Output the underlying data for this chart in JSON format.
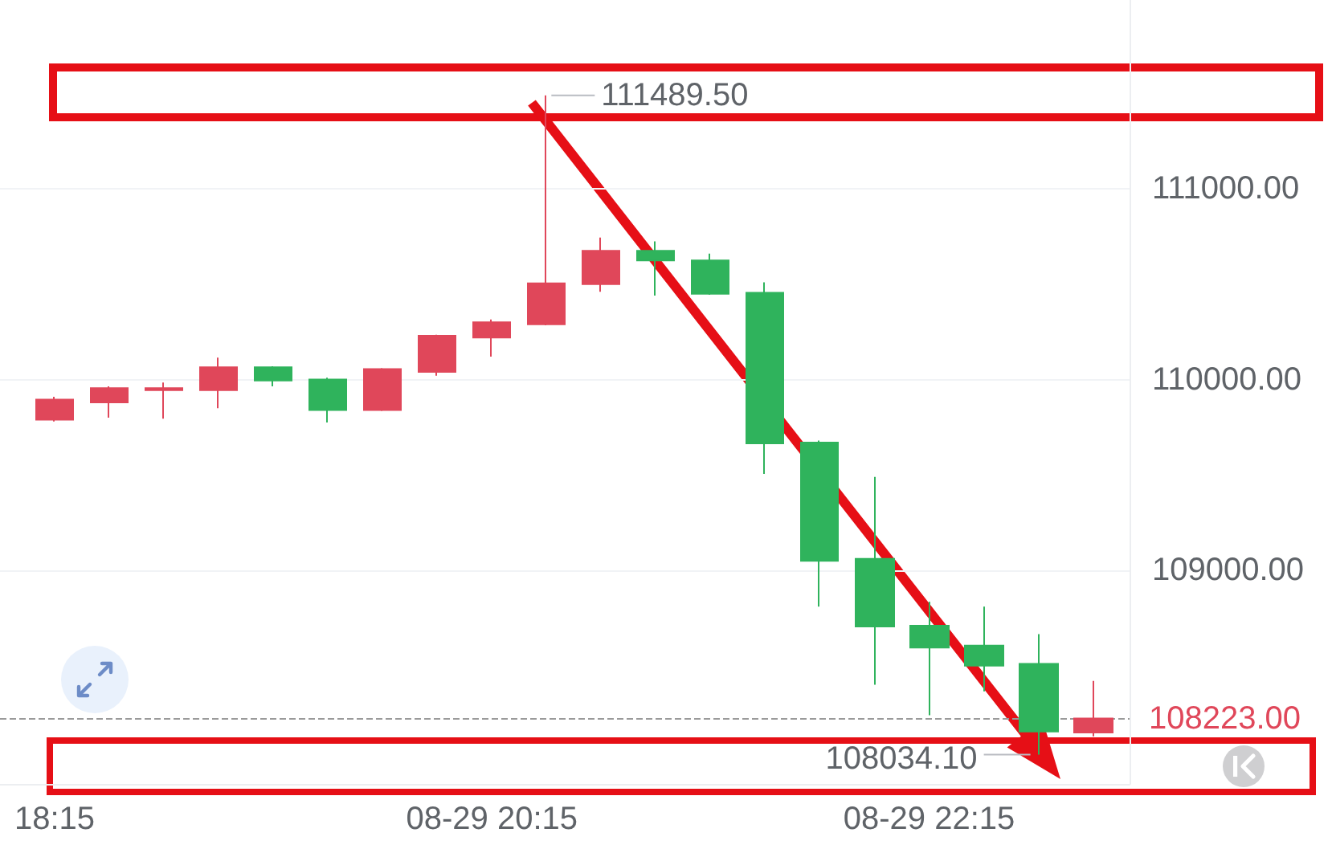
{
  "chart_data": {
    "type": "candlestick",
    "x": [
      "--08-29T18:15",
      "--08-29T18:30",
      "--08-29T18:45",
      "--08-29T19:00",
      "--08-29T19:15",
      "--08-29T19:30",
      "--08-29T19:45",
      "--08-29T20:00",
      "--08-29T20:15",
      "--08-29T20:30",
      "--08-29T20:45",
      "--08-29T21:00",
      "--08-29T21:15",
      "--08-29T21:30",
      "--08-29T21:45",
      "--08-29T22:00",
      "--08-29T22:15",
      "--08-29T22:30",
      "--08-29T22:45",
      "--08-29T23:00"
    ],
    "ohlc": [
      [
        109790,
        109910,
        109780,
        109895
      ],
      [
        109880,
        109965,
        109800,
        109955
      ],
      [
        109945,
        109985,
        109795,
        109955
      ],
      [
        109945,
        110115,
        109850,
        110065
      ],
      [
        110065,
        110070,
        109965,
        109995
      ],
      [
        110000,
        110010,
        109775,
        109840
      ],
      [
        109840,
        110060,
        109835,
        110055
      ],
      [
        110040,
        110235,
        110020,
        110230
      ],
      [
        110220,
        110315,
        110120,
        110300
      ],
      [
        110290,
        111489.5,
        110285,
        110505
      ],
      [
        110500,
        110745,
        110460,
        110675
      ],
      [
        110675,
        110725,
        110440,
        110625
      ],
      [
        110625,
        110660,
        110445,
        110450
      ],
      [
        110455,
        110510,
        109505,
        109665
      ],
      [
        109670,
        109680,
        108810,
        109050
      ],
      [
        109060,
        109490,
        108400,
        108705
      ],
      [
        108710,
        108835,
        108240,
        108595
      ],
      [
        108605,
        108810,
        108365,
        108500
      ],
      [
        108510,
        108665,
        108034.1,
        108155
      ],
      [
        108150,
        108420,
        108130,
        108223
      ]
    ],
    "colors": [
      "#e0475a",
      "#e0475a",
      "#e0475a",
      "#e0475a",
      "#2fb35c",
      "#2fb35c",
      "#e0475a",
      "#e0475a",
      "#e0475a",
      "#e0475a",
      "#e0475a",
      "#2fb35c",
      "#2fb35c",
      "#2fb35c",
      "#2fb35c",
      "#2fb35c",
      "#2fb35c",
      "#2fb35c",
      "#2fb35c",
      "#e0475a"
    ],
    "xlim": [
      "--08-29T18:00",
      "--08-29T23:10"
    ],
    "xticks": [
      {
        "value": "--08-29T18:15",
        "label": "18:15"
      },
      {
        "value": "--08-29T20:15",
        "label": "08-29 20:15"
      },
      {
        "value": "--08-29T22:15",
        "label": "08-29 22:15"
      }
    ],
    "ylim": [
      107880,
      111990
    ],
    "yticks": [
      {
        "value": 109000,
        "label": "109000.00"
      },
      {
        "value": 110000,
        "label": "110000.00"
      },
      {
        "value": 111000,
        "label": "111000.00"
      }
    ],
    "grid": "y",
    "ref_lines": [
      {
        "axis": "y",
        "value": 108223,
        "label": "108223.00",
        "color": "#9a9a9a",
        "line_style": "dashed"
      }
    ],
    "annotations": [
      {
        "text": "111489.50",
        "x": "--08-29T20:30",
        "y": 111489.5
      },
      {
        "text": "108034.10",
        "x": "--08-29T22:45",
        "y": 108034.1
      }
    ]
  }
}
